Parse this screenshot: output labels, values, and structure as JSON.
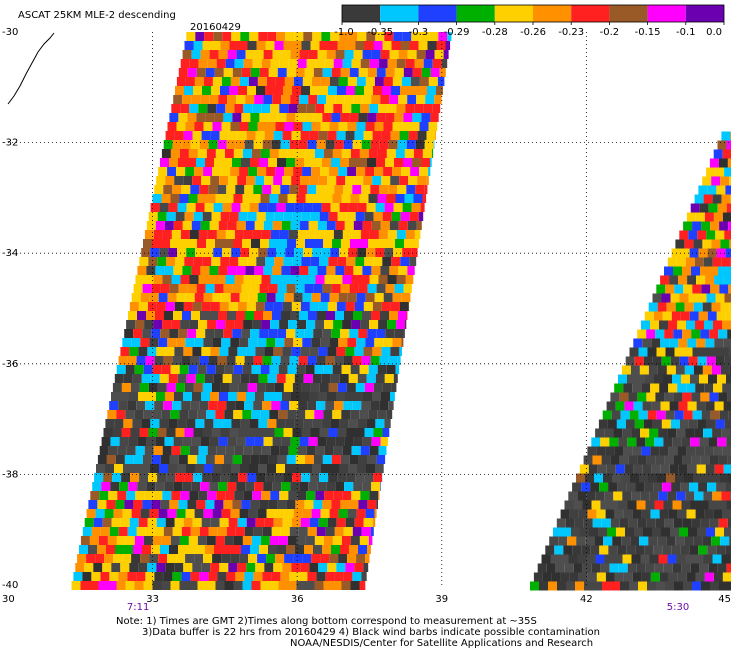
{
  "title": "ASCAT 25KM MLE-2 descending",
  "date": "20160429",
  "colorbar": {
    "ticks": [
      "-1.0",
      "-0.35",
      "-0.3",
      "-0.29",
      "-0.28",
      "-0.26",
      "-0.23",
      "-0.2",
      "-0.15",
      "-0.1",
      "0.0"
    ],
    "colors": [
      "#3a3a3a",
      "#00c8ff",
      "#2040ff",
      "#00b000",
      "#ffd000",
      "#ff9000",
      "#ff2020",
      "#9a5a28",
      "#ff00ff",
      "#6a00b0"
    ]
  },
  "notes": {
    "line1": "Note: 1) Times are GMT 2)Times along bottom correspond to measurement at ~35S",
    "line2": "3)Data buffer is 22 hrs from 20160429 4) Black wind barbs indicate possible contamination",
    "line3": "NOAA/NESDIS/Center for Satellite Applications and Research"
  },
  "chart_data": {
    "type": "heatmap",
    "title": "ASCAT 25KM MLE-2 descending",
    "subtitle": "20160429",
    "xlim": [
      30,
      45
    ],
    "ylim": [
      -40,
      -30
    ],
    "x_ticks": [
      "30",
      "33",
      "36",
      "39",
      "42",
      "45"
    ],
    "y_ticks": [
      "-30",
      "-32",
      "-34",
      "-36",
      "-38",
      "-40"
    ],
    "grid": true,
    "times": [
      {
        "label": "7:11",
        "lon": 32.7
      },
      {
        "label": "5:30",
        "lon": 43.9
      }
    ],
    "swaths": [
      {
        "name_shown": false,
        "lat_range": [
          -40,
          -30
        ],
        "lon_west_top": 33.7,
        "lon_east_top": 39.2,
        "lon_west_bottom": 31.3,
        "lon_east_bottom": 37.4
      },
      {
        "name_shown": false,
        "lat_range": [
          -40,
          -31.8
        ],
        "lon_west_top": 44.8,
        "lon_east_top": 45,
        "lon_west_bottom": 40.8,
        "lon_east_bottom": 45
      }
    ],
    "value_bins": [
      "-1.0",
      "-0.35",
      "-0.3",
      "-0.29",
      "-0.28",
      "-0.26",
      "-0.23",
      "-0.2",
      "-0.15",
      "-0.1",
      "0.0"
    ]
  }
}
